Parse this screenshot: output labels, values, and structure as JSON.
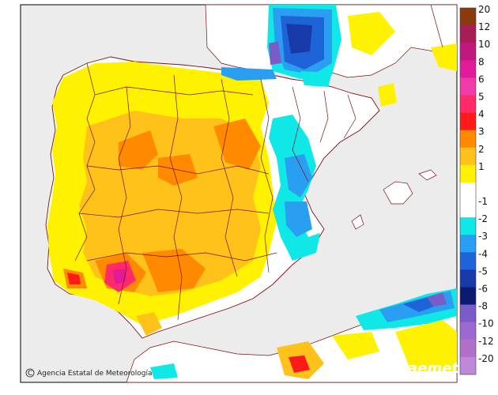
{
  "credit_text": "Agencia Estatal de Meteorología",
  "logo_text": "aemet",
  "copyright_symbol": "C",
  "legend": {
    "bins": [
      {
        "label": "20",
        "color": "#8b3a10"
      },
      {
        "label": "12",
        "color": "#a81c58"
      },
      {
        "label": "10",
        "color": "#c0187c"
      },
      {
        "label": "8",
        "color": "#e01a98"
      },
      {
        "label": "6",
        "color": "#f03aa8"
      },
      {
        "label": "5",
        "color": "#ff2a6a"
      },
      {
        "label": "4",
        "color": "#ff1a1a"
      },
      {
        "label": "3",
        "color": "#ff8a00"
      },
      {
        "label": "2",
        "color": "#ffc21a"
      },
      {
        "label": "1",
        "color": "#fff200"
      },
      {
        "label": "",
        "color": "#ffffff"
      },
      {
        "label": "-1",
        "color": "#ffffff"
      },
      {
        "label": "-2",
        "color": "#10e8e8"
      },
      {
        "label": "-3",
        "color": "#2a9ef0"
      },
      {
        "label": "-4",
        "color": "#1e64d8"
      },
      {
        "label": "-5",
        "color": "#183aa8"
      },
      {
        "label": "-6",
        "color": "#0c1a70"
      },
      {
        "label": "-8",
        "color": "#7a5cc8"
      },
      {
        "label": "-10",
        "color": "#9a6ad0"
      },
      {
        "label": "-12",
        "color": "#b070c8"
      },
      {
        "label": "-20",
        "color": "#c088d8"
      }
    ]
  },
  "colors": {
    "sea": "#ececec",
    "land_base": "#ffffff",
    "border": "#7a1010",
    "frame": "#000000"
  }
}
